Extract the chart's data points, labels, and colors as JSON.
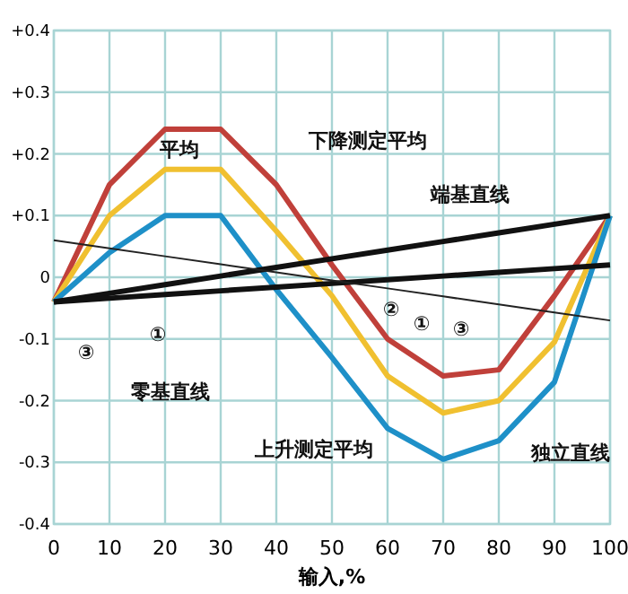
{
  "chart_data": {
    "type": "line",
    "xlabel": "输入,%",
    "x": [
      0,
      10,
      20,
      30,
      40,
      50,
      60,
      70,
      80,
      90,
      100
    ],
    "series": [
      {
        "color": "#c0403a",
        "values": [
          -0.04,
          0.15,
          0.24,
          0.24,
          0.15,
          0.02,
          -0.1,
          -0.16,
          -0.15,
          -0.03,
          0.1
        ]
      },
      {
        "color": "#f0c030",
        "values": [
          -0.04,
          0.1,
          0.175,
          0.175,
          0.075,
          -0.03,
          -0.16,
          -0.22,
          -0.2,
          -0.105,
          0.1
        ]
      },
      {
        "color": "#1e90c8",
        "values": [
          -0.04,
          0.04,
          0.1,
          0.1,
          -0.02,
          -0.13,
          -0.245,
          -0.295,
          -0.265,
          -0.17,
          0.1
        ]
      },
      {
        "color": "#111111",
        "values": [
          -0.04,
          -0.026,
          -0.012,
          0.002,
          0.016,
          0.03,
          0.044,
          0.058,
          0.072,
          0.086,
          0.1
        ]
      },
      {
        "color": "#111111",
        "values": [
          -0.04,
          -0.034,
          -0.028,
          -0.022,
          -0.016,
          -0.01,
          -0.004,
          0.002,
          0.008,
          0.014,
          0.02
        ]
      },
      {
        "color": "#222222",
        "values": [
          0.06,
          0.047,
          0.034,
          0.021,
          0.008,
          -0.005,
          -0.018,
          -0.031,
          -0.044,
          -0.057,
          -0.07
        ]
      }
    ],
    "xlim": [
      0,
      100
    ],
    "xticks": [
      0,
      10,
      20,
      30,
      40,
      50,
      60,
      70,
      80,
      90,
      100
    ],
    "ylim": [
      -0.4,
      0.4
    ],
    "yticks": [
      {
        "value": 0.4,
        "label": "+0.4"
      },
      {
        "value": 0.3,
        "label": "+0.3"
      },
      {
        "value": 0.2,
        "label": "+0.2"
      },
      {
        "value": 0.1,
        "label": "+0.1"
      },
      0,
      -0.1,
      -0.2,
      -0.3,
      -0.4
    ],
    "grid": true,
    "marker": "none",
    "line_style": "solid",
    "annotations": [
      "平均",
      "下降测定平均",
      "端基直线",
      "零基直线",
      "上升测定平均",
      "独立直线",
      "③",
      "①",
      "②",
      "①",
      "③"
    ]
  }
}
